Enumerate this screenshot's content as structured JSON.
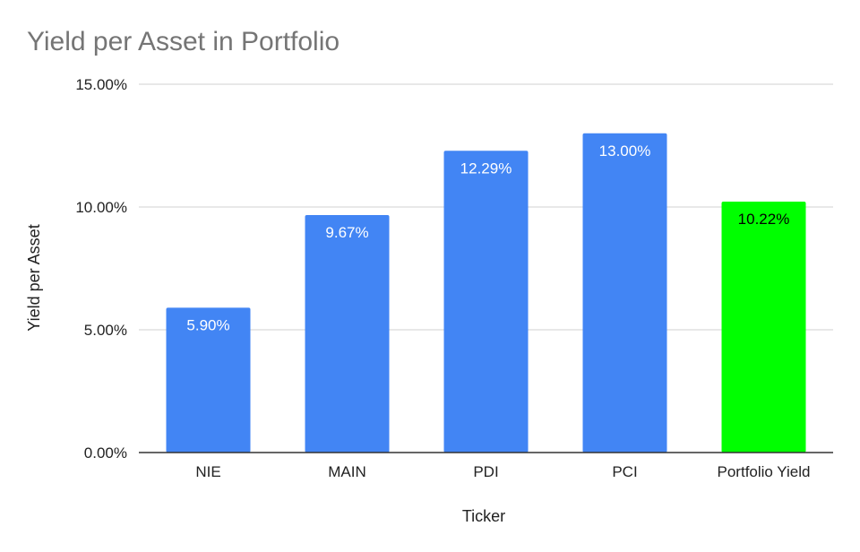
{
  "chart_data": {
    "type": "bar",
    "title": "Yield per Asset in Portfolio",
    "xlabel": "Ticker",
    "ylabel": "Yield per Asset",
    "categories": [
      "NIE",
      "MAIN",
      "PDI",
      "PCI",
      "Portfolio Yield"
    ],
    "values": [
      5.9,
      9.67,
      12.29,
      13.0,
      10.22
    ],
    "data_labels": [
      "5.90%",
      "9.67%",
      "12.29%",
      "13.00%",
      "10.22%"
    ],
    "ylim": [
      0,
      15
    ],
    "yticks": [
      0,
      5,
      10,
      15
    ],
    "ytick_labels": [
      "0.00%",
      "5.00%",
      "10.00%",
      "15.00%"
    ],
    "grid": true,
    "colors": [
      "#4285f4",
      "#4285f4",
      "#4285f4",
      "#4285f4",
      "#00ff00"
    ],
    "label_colors": [
      "#ffffff",
      "#ffffff",
      "#ffffff",
      "#ffffff",
      "#000000"
    ]
  }
}
